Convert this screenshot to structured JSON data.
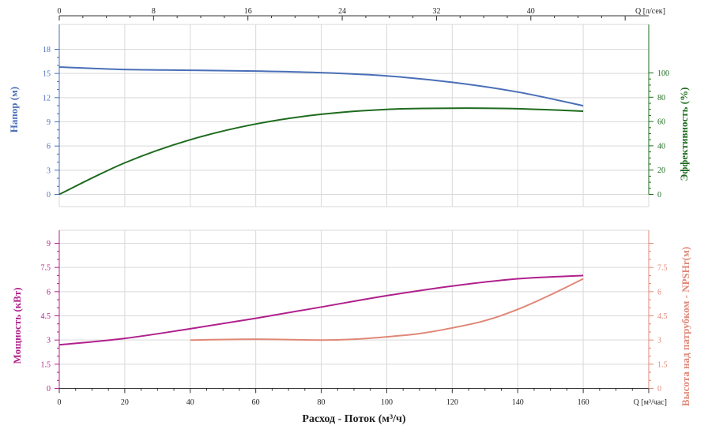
{
  "colors": {
    "head": "#4a6fb8",
    "efficiency": "#1e6b1e",
    "power": "#b0208c",
    "npsh": "#e08878",
    "grid": "#d9d9d9",
    "axis": "#333333",
    "text": "#222222"
  },
  "labels": {
    "xlabel": "Расход - Поток (м³/ч)",
    "x_unit_bottom": "Q [м³/час]",
    "x_unit_top": "Q [л/сек]",
    "head_axis": "Напор (м)",
    "eff_axis": "Эффективность (%)",
    "power_axis": "Мощность (кВт)",
    "npsh_axis": "Высота над патрубком - NPSHr(м)"
  },
  "chart_data": [
    {
      "type": "line",
      "panel": "upper",
      "x_axis_bottom": {
        "label": "Q [м³/час]",
        "range": [
          0,
          180
        ],
        "ticks": [
          0,
          20,
          40,
          60,
          80,
          100,
          120,
          140,
          160
        ]
      },
      "x_axis_top": {
        "label": "Q [л/сек]",
        "range": [
          0,
          50
        ],
        "ticks": [
          0,
          8,
          16,
          24,
          32,
          40
        ]
      },
      "y_left": {
        "label": "Напор (м)",
        "range": [
          0,
          18
        ],
        "ticks": [
          0,
          3,
          6,
          9,
          12,
          15,
          18
        ]
      },
      "y_right": {
        "label": "Эффективность (%)",
        "range": [
          0,
          100
        ],
        "ticks": [
          0,
          20,
          40,
          60,
          80,
          100
        ]
      },
      "grid": true,
      "series": [
        {
          "axis": "left",
          "x": [
            0,
            20,
            40,
            60,
            80,
            100,
            120,
            140,
            160
          ],
          "values": [
            15.8,
            15.5,
            15.4,
            15.3,
            15.1,
            14.7,
            13.9,
            12.7,
            11.0
          ]
        },
        {
          "axis": "right",
          "x": [
            0,
            20,
            40,
            60,
            80,
            100,
            120,
            140,
            160
          ],
          "values": [
            0,
            26,
            45,
            58,
            66,
            70,
            71,
            70.5,
            68.5
          ]
        }
      ]
    },
    {
      "type": "line",
      "panel": "lower",
      "x_axis_bottom": {
        "label": "Q [м³/час]",
        "range": [
          0,
          180
        ],
        "ticks": [
          0,
          20,
          40,
          60,
          80,
          100,
          120,
          140,
          160
        ]
      },
      "y_left": {
        "label": "Мощность (кВт)",
        "range": [
          0,
          9
        ],
        "ticks": [
          0,
          1.5,
          3,
          4.5,
          6,
          7.5,
          9
        ]
      },
      "y_right": {
        "label": "Высота над патрубком - NPSHr(м)",
        "range": [
          0,
          9
        ],
        "ticks": [
          0,
          1.5,
          3,
          4.5,
          6,
          7.5
        ]
      },
      "grid": true,
      "series": [
        {
          "axis": "left",
          "x": [
            0,
            20,
            40,
            60,
            80,
            100,
            120,
            140,
            160
          ],
          "values": [
            2.7,
            3.1,
            3.7,
            4.35,
            5.05,
            5.75,
            6.35,
            6.8,
            7.0
          ]
        },
        {
          "axis": "right",
          "x": [
            40,
            60,
            80,
            90,
            100,
            110,
            120,
            130,
            140,
            150,
            160
          ],
          "values": [
            3.0,
            3.05,
            3.0,
            3.05,
            3.2,
            3.4,
            3.75,
            4.2,
            4.9,
            5.8,
            6.8
          ]
        }
      ]
    }
  ]
}
